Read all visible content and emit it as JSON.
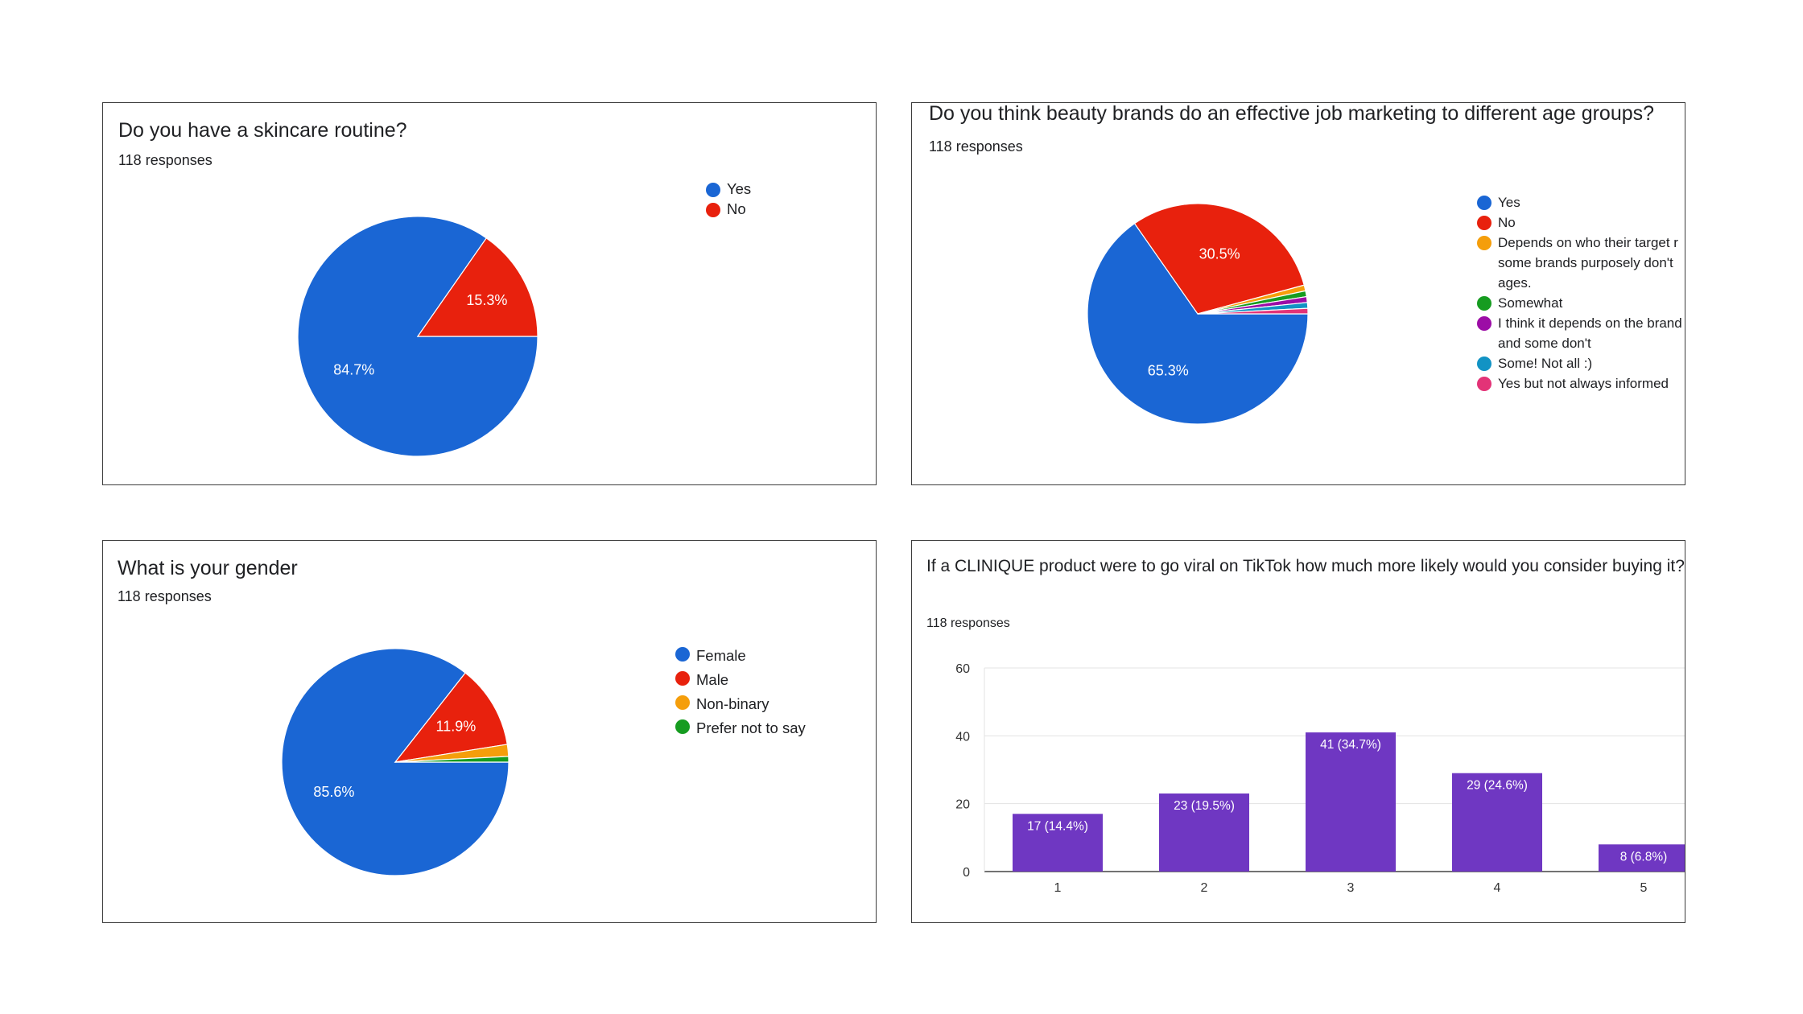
{
  "chart_data": [
    {
      "type": "pie",
      "title": "Do you have a skincare routine?",
      "subtitle": "118 responses",
      "categories": [
        "Yes",
        "No"
      ],
      "values": [
        84.7,
        15.3
      ],
      "labels": [
        "84.7%",
        "15.3%"
      ],
      "colors": [
        "#1a66d4",
        "#e8210d"
      ],
      "legend": "right"
    },
    {
      "type": "pie",
      "title": "Do you think beauty brands do an effective job marketing to different age groups?",
      "subtitle": "118 responses",
      "categories": [
        "Yes",
        "No",
        "Depends on who their target r some brands purposely don't ages.",
        "Somewhat",
        "I think it depends on the brand and some don't",
        "Some! Not all :)",
        "Yes but not always informed"
      ],
      "values": [
        65.3,
        30.5,
        0.85,
        0.85,
        0.85,
        0.85,
        0.8
      ],
      "labels": [
        "65.3%",
        "30.5%",
        "",
        "",
        "",
        "",
        ""
      ],
      "colors": [
        "#1a66d4",
        "#e8210d",
        "#f59e0b",
        "#169c20",
        "#9c0da6",
        "#1293c4",
        "#e33377"
      ],
      "legend": "right"
    },
    {
      "type": "pie",
      "title": "What is your gender",
      "subtitle": "118 responses",
      "categories": [
        "Female",
        "Male",
        "Non-binary",
        "Prefer not to say"
      ],
      "values": [
        85.6,
        11.9,
        1.7,
        0.8
      ],
      "labels": [
        "85.6%",
        "11.9%",
        "",
        ""
      ],
      "colors": [
        "#1a66d4",
        "#e8210d",
        "#f59e0b",
        "#169c20"
      ],
      "legend": "right"
    },
    {
      "type": "bar",
      "title": "If a CLINIQUE product were to go viral on TikTok how much more likely would you consider buying it?",
      "subtitle": "118 responses",
      "categories": [
        "1",
        "2",
        "3",
        "4",
        "5"
      ],
      "values": [
        17,
        23,
        41,
        29,
        8
      ],
      "labels": [
        "17 (14.4%)",
        "23 (19.5%)",
        "41 (34.7%)",
        "29 (24.6%)",
        "8 (6.8%)"
      ],
      "yticks": [
        0,
        20,
        40,
        60
      ],
      "ylim": [
        0,
        60
      ],
      "grid": true,
      "color": "#6f37c2"
    }
  ]
}
